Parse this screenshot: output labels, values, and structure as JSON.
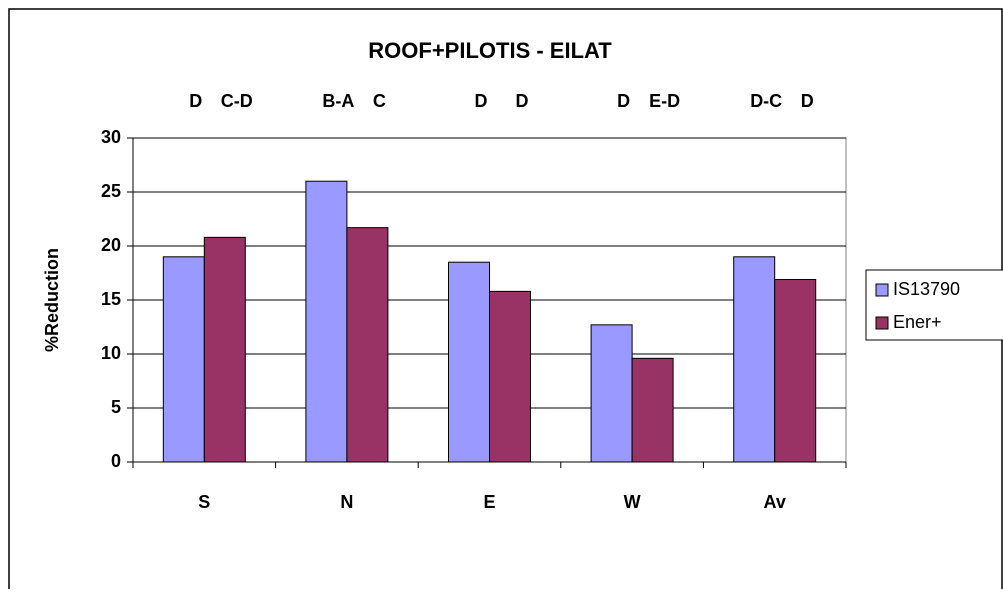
{
  "chart_data": {
    "type": "bar",
    "title": "ROOF+PILOTIS - EILAT",
    "y_label": "%Reduction",
    "categories": [
      "S",
      "N",
      "E",
      "W",
      "Av"
    ],
    "annotations": [
      [
        "D",
        "C-D"
      ],
      [
        "B-A",
        "C"
      ],
      [
        "D",
        "D"
      ],
      [
        "D",
        "E-D"
      ],
      [
        "D-C",
        "D"
      ]
    ],
    "series": [
      {
        "name": "IS13790",
        "color": "#9999ff",
        "values": [
          19,
          26,
          18.5,
          12.7,
          19
        ]
      },
      {
        "name": "Ener+",
        "color": "#993366",
        "values": [
          20.8,
          21.7,
          15.8,
          9.6,
          16.9
        ]
      }
    ],
    "ylim": [
      0,
      30
    ],
    "yticks": [
      0,
      5,
      10,
      15,
      20,
      25,
      30
    ],
    "grid": true,
    "legend": "right"
  }
}
